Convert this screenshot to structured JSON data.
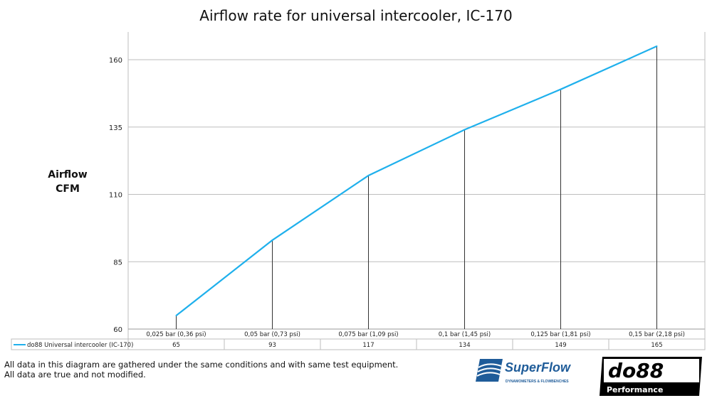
{
  "chart_data": {
    "type": "line",
    "title": "Airflow rate for universal intercooler, IC-170",
    "ylabel": [
      "Airflow",
      "CFM"
    ],
    "xlabel": "",
    "categories": [
      "0,025 bar (0,36 psi)",
      "0,05 bar (0,73 psi)",
      "0,075 bar (1,09 psi)",
      "0,1 bar (1,45 psi)",
      "0,125 bar (1,81 psi)",
      "0,15 bar (2,18 psi)"
    ],
    "series": [
      {
        "name": "do88 Universal intercooler (IC-170)",
        "values": [
          65,
          93,
          117,
          134,
          149,
          165
        ],
        "color": "#1fb0ec"
      }
    ],
    "ylim": [
      60,
      165
    ],
    "yticks": [
      60,
      85,
      110,
      135,
      160
    ],
    "grid": true,
    "legend": "data-table"
  },
  "footer": {
    "line1": "All data in this diagram are gathered under the same conditions and with same test equipment.",
    "line2": "All data are true and not modified."
  },
  "logos": {
    "superflow": "SuperFlow",
    "superflow_sub": "DYNAMOMETERS & FLOWBENCHES",
    "do88": "do88",
    "do88_sub": "Performance"
  }
}
